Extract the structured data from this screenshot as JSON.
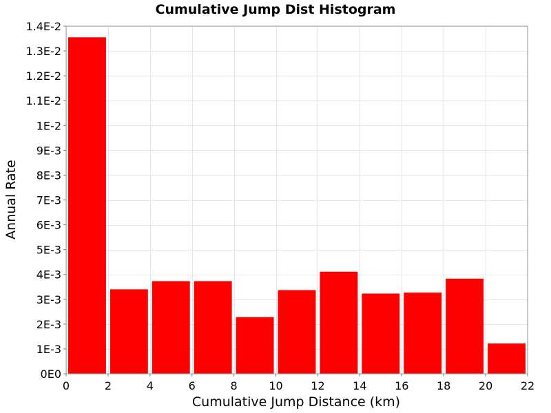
{
  "chart_data": {
    "type": "bar",
    "title": "Cumulative Jump Dist Histogram",
    "xlabel": "Cumulative Jump Distance (km)",
    "ylabel": "Annual Rate",
    "xlim": [
      0,
      22
    ],
    "ylim": [
      0,
      0.014
    ],
    "grid": true,
    "bar_color": "#ff0000",
    "x_ticks": [
      {
        "value": 0,
        "label": "0"
      },
      {
        "value": 2,
        "label": "2"
      },
      {
        "value": 4,
        "label": "4"
      },
      {
        "value": 6,
        "label": "6"
      },
      {
        "value": 8,
        "label": "8"
      },
      {
        "value": 10,
        "label": "10"
      },
      {
        "value": 12,
        "label": "12"
      },
      {
        "value": 14,
        "label": "14"
      },
      {
        "value": 16,
        "label": "16"
      },
      {
        "value": 18,
        "label": "18"
      },
      {
        "value": 20,
        "label": "20"
      },
      {
        "value": 22,
        "label": "22"
      }
    ],
    "y_ticks": [
      {
        "value": 0,
        "label": "0E0"
      },
      {
        "value": 0.001,
        "label": "1E-3"
      },
      {
        "value": 0.002,
        "label": "2E-3"
      },
      {
        "value": 0.003,
        "label": "3E-3"
      },
      {
        "value": 0.004,
        "label": "4E-3"
      },
      {
        "value": 0.005,
        "label": "5E-3"
      },
      {
        "value": 0.006,
        "label": "6E-3"
      },
      {
        "value": 0.007,
        "label": "7E-3"
      },
      {
        "value": 0.008,
        "label": "8E-3"
      },
      {
        "value": 0.009,
        "label": "9E-3"
      },
      {
        "value": 0.01,
        "label": "1E-2"
      },
      {
        "value": 0.011,
        "label": "1.1E-2"
      },
      {
        "value": 0.012,
        "label": "1.2E-2"
      },
      {
        "value": 0.013,
        "label": "1.3E-2"
      },
      {
        "value": 0.014,
        "label": "1.4E-2"
      }
    ],
    "bins": [
      {
        "x0": 0,
        "x1": 2,
        "value": 0.01355
      },
      {
        "x0": 2,
        "x1": 4,
        "value": 0.0034
      },
      {
        "x0": 4,
        "x1": 6,
        "value": 0.00373
      },
      {
        "x0": 6,
        "x1": 8,
        "value": 0.00373
      },
      {
        "x0": 8,
        "x1": 10,
        "value": 0.00228
      },
      {
        "x0": 10,
        "x1": 12,
        "value": 0.00337
      },
      {
        "x0": 12,
        "x1": 14,
        "value": 0.00411
      },
      {
        "x0": 14,
        "x1": 16,
        "value": 0.00323
      },
      {
        "x0": 16,
        "x1": 18,
        "value": 0.00327
      },
      {
        "x0": 18,
        "x1": 20,
        "value": 0.00383
      },
      {
        "x0": 20,
        "x1": 22,
        "value": 0.00122
      }
    ]
  }
}
